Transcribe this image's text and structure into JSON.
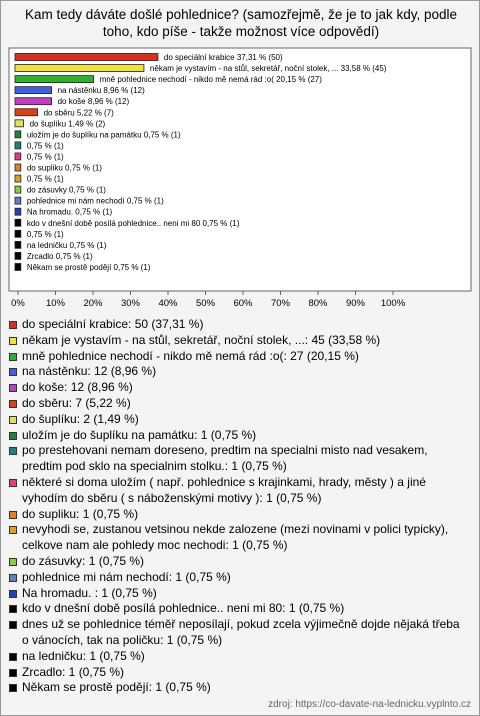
{
  "chart_data": {
    "type": "bar",
    "orientation": "horizontal",
    "title": "Kam tedy dáváte došlé pohlednice? (samozřejmě, že je to jak kdy, podle toho, kdo píše - takže možnost více odpovědí)",
    "values": [
      37.31,
      33.58,
      20.15,
      8.96,
      8.96,
      5.22,
      1.49,
      0.75,
      0.75,
      0.75,
      0.75,
      0.75,
      0.75,
      0.75,
      0.75,
      0.75,
      0.75,
      0.75,
      0.75,
      0.75
    ],
    "value_labels": [
      "do speciální krabice 37,31 % (50)",
      "někam je vystavím - na stůl, sekretář, noční stolek, ... 33,58 % (45)",
      "mně pohlednice nechodí - nikdo mě nemá rád :o( 20,15 % (27)",
      "na nástěnku 8,96 % (12)",
      "do koše 8,96 % (12)",
      "do sběru 5,22 % (7)",
      "do šuplíku 1,49 % (2)",
      "uložím je do šuplíku na památku 0,75 % (1)",
      "0,75 % (1)",
      "0,75 % (1)",
      "do supliku 0,75 % (1)",
      "0,75 % (1)",
      "do zásuvky 0,75 % (1)",
      "pohlednice mi nám nechodí 0,75 % (1)",
      "Na hromadu.  0,75 % (1)",
      "kdo v dnešní době posílá pohlednice.. neni mi 80 0,75 % (1)",
      "0,75 % (1)",
      "na ledničku 0,75 % (1)",
      "Zrcadlo 0,75 % (1)",
      "Někam se prostě podějí 0,75 % (1)"
    ],
    "legend": [
      "do speciální krabice: 50 (37,31 %)",
      "někam je vystavím - na stůl, sekretář, noční stolek, ...: 45 (33,58 %)",
      "mně pohlednice nechodí - nikdo mě nemá rád :o(: 27 (20,15 %)",
      "na nástěnku: 12 (8,96 %)",
      "do koše: 12 (8,96 %)",
      "do sběru: 7 (5,22 %)",
      "do šuplíku: 2 (1,49 %)",
      "uložím je do šuplíku na památku: 1 (0,75 %)",
      "po prestehovani nemam doreseno, predtim na specialni misto nad vesakem, predtim pod sklo na specialnim stolku.: 1 (0,75 %)",
      "některé si doma uložím ( např. pohlednice s krajinkami, hrady, městy ) a jiné vyhodím do sběru ( s náboženskými motivy ): 1 (0,75 %)",
      "do supliku: 1 (0,75 %)",
      "nevyhodi se, zustanou vetsinou nekde zalozene (mezi novinami v polici typicky), celkove nam ale pohledy moc nechodi: 1 (0,75 %)",
      "do zásuvky: 1 (0,75 %)",
      "pohlednice mi nám nechodí: 1 (0,75 %)",
      "Na hromadu. : 1 (0,75 %)",
      "kdo v dnešní době posílá pohlednice.. neni mi 80: 1 (0,75 %)",
      "dnes už se pohlednice téměř neposílají, pokud zcela výjimečně dojde nějaká třeba o vánocích, tak na poličku: 1 (0,75 %)",
      "na ledničku: 1 (0,75 %)",
      "Zrcadlo: 1 (0,75 %)",
      "Někam se prostě podějí: 1 (0,75 %)"
    ],
    "colors": [
      "#d83020",
      "#f0e040",
      "#30b030",
      "#4060e0",
      "#c040c0",
      "#e04010",
      "#e0e060",
      "#208040",
      "#208080",
      "#e04080",
      "#e08020",
      "#e0a020",
      "#80d040",
      "#6080c0",
      "#2040c0",
      "#000000",
      "#000000",
      "#000000",
      "#000000",
      "#000000"
    ],
    "xlim": [
      0,
      100
    ],
    "xticks": [
      {
        "value": 0,
        "label": "0%"
      },
      {
        "value": 10,
        "label": "10%"
      },
      {
        "value": 20,
        "label": "20%"
      },
      {
        "value": 30,
        "label": "30%"
      },
      {
        "value": 40,
        "label": "40%"
      },
      {
        "value": 50,
        "label": "50%"
      },
      {
        "value": 60,
        "label": "60%"
      },
      {
        "value": 70,
        "label": "70%"
      },
      {
        "value": 80,
        "label": "80%"
      },
      {
        "value": 90,
        "label": "90%"
      },
      {
        "value": 100,
        "label": "100%"
      }
    ],
    "source": "zdroj: https://co-davate-na-lednicku.vyplnto.cz"
  }
}
